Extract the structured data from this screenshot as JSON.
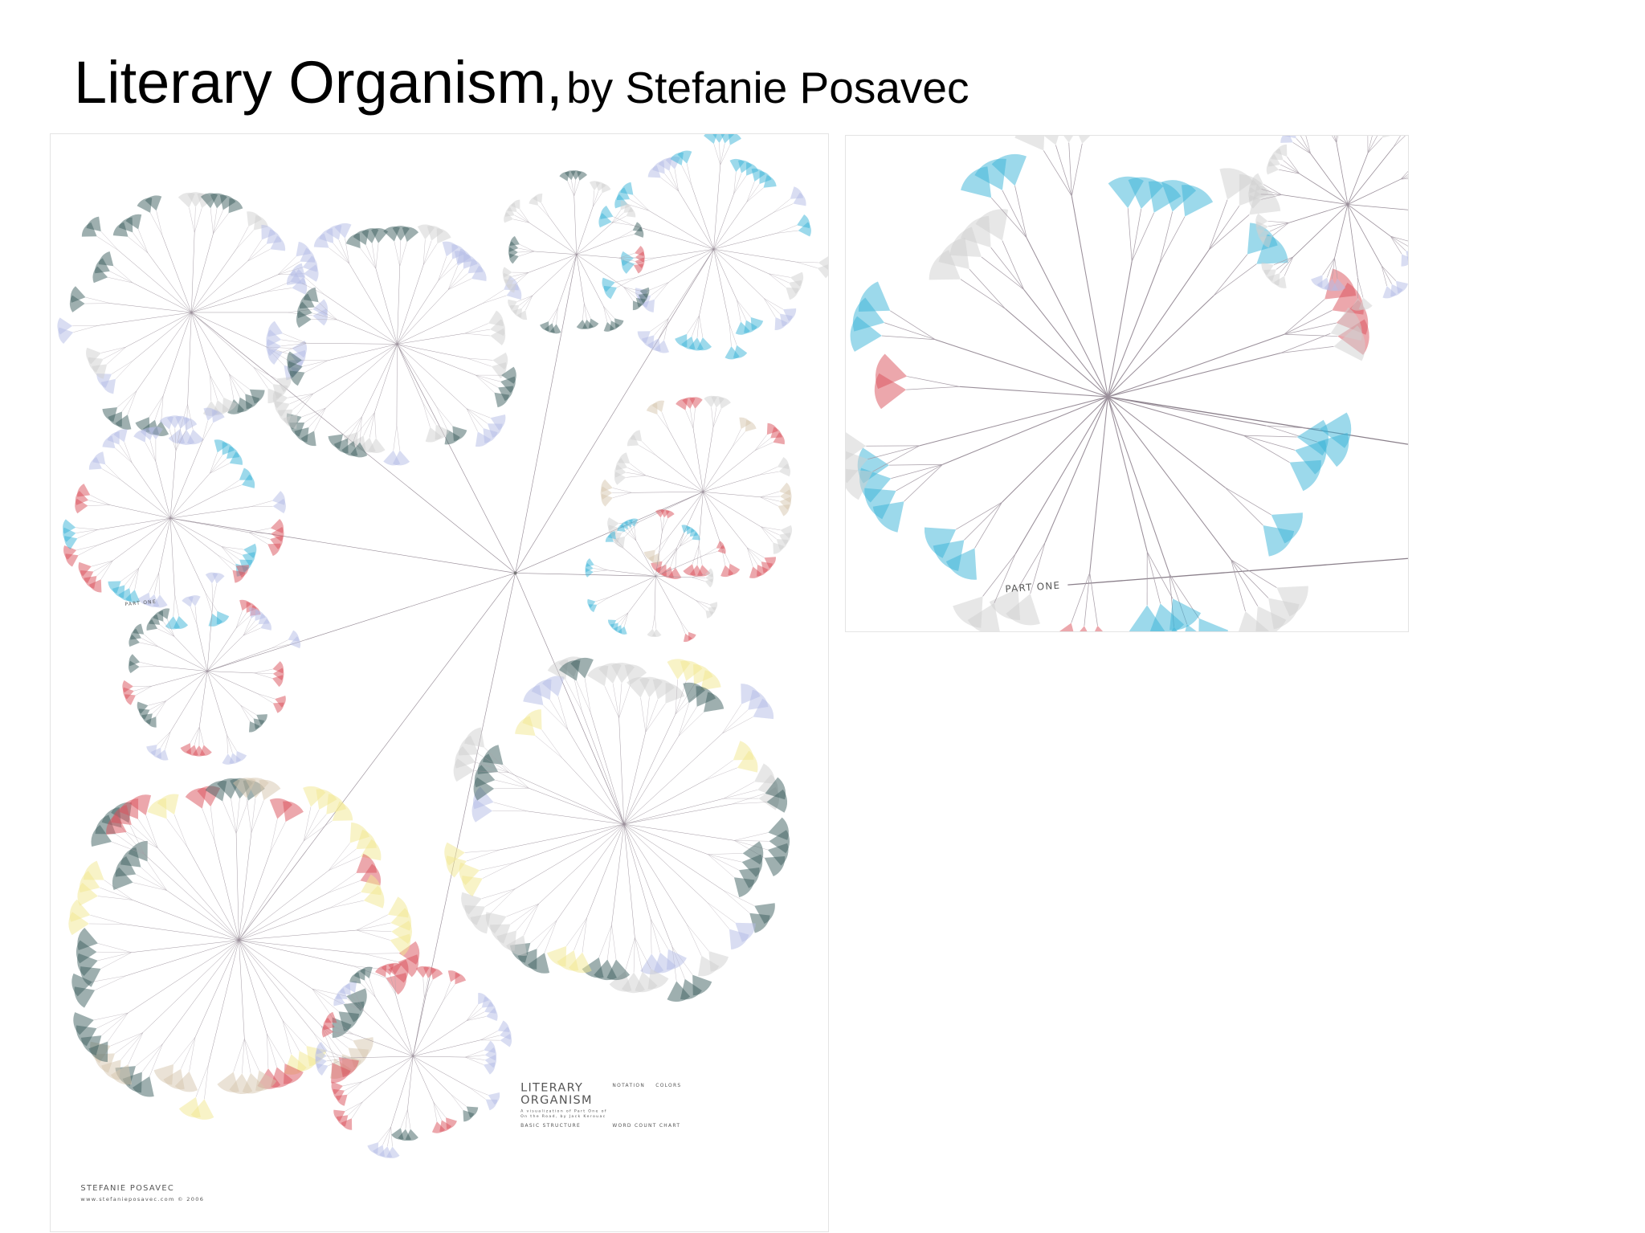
{
  "title": "Literary Organism,",
  "subtitle": "by Stefanie Posavec",
  "poster": {
    "part_label": "PART ONE",
    "legend_title": [
      "LITERARY",
      "ORGANISM"
    ],
    "legend_subtitle": [
      "A visualization of Part One of",
      "On the Road, by Jack Kerouac"
    ],
    "sections": [
      "NOTATION",
      "COLORS",
      "BASIC STRUCTURE",
      "WORD COUNT CHART"
    ],
    "author": "STEFANIE POSAVEC",
    "credit": "www.stefanieposavec.com  © 2006"
  },
  "detail": {
    "part_label": "PART ONE"
  }
}
